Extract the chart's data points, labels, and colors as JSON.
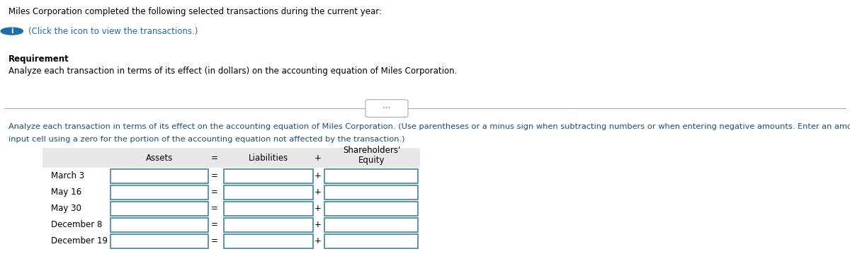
{
  "title_text": "Miles Corporation completed the following selected transactions during the current year:",
  "click_text": "(Click the icon to view the transactions.)",
  "requirement_label": "Requirement",
  "requirement_text": "Analyze each transaction in terms of its effect (in dollars) on the accounting equation of Miles Corporation.",
  "instruction_line1": "Analyze each transaction in terms of its effect on the accounting equation of Miles Corporation. (Use parentheses or a minus sign when subtracting numbers or when entering negative amounts. Enter an amount in each",
  "instruction_line2": "input cell using a zero for the portion of the accounting equation not affected by the transaction.)",
  "col_headers": [
    "Assets",
    "=",
    "Liabilities",
    "+",
    "Shareholders'\nEquity"
  ],
  "row_labels": [
    "March 3",
    "May 16",
    "May 30",
    "December 8",
    "December 19"
  ],
  "bg_color": "#ffffff",
  "header_bg": "#e8e8e8",
  "cell_border_color": "#4a90a4",
  "text_color_black": "#000000",
  "text_color_green": "#2d7d2d",
  "text_color_blue": "#1a4f7a",
  "info_icon_color": "#1a6fa8",
  "separator_color": "#aaaaaa",
  "font_size": 8.5
}
